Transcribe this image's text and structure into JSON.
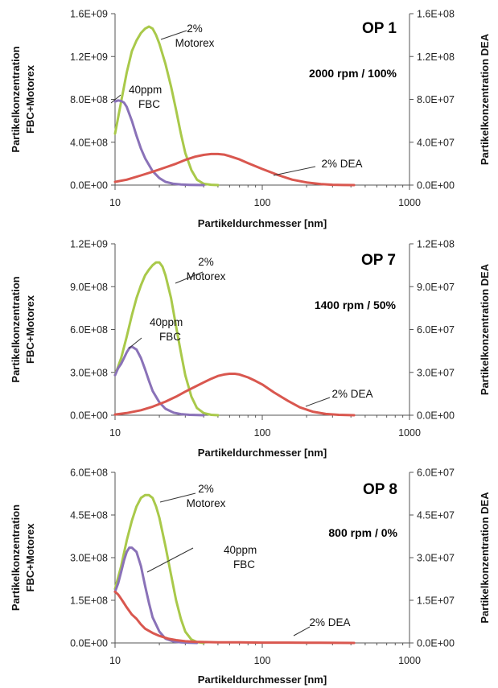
{
  "colors": {
    "motorex": "#a9c94a",
    "fbc": "#8a72b8",
    "dea": "#d9574f",
    "axis": "#555555"
  },
  "chart_data": [
    {
      "type": "line",
      "op_label": "OP 1",
      "condition": "2000 rpm / 100%",
      "xlabel": "Partikeldurchmesser [nm]",
      "ylabel_left": [
        "Partikelkonzentration",
        "FBC+Motorex"
      ],
      "ylabel_right": "Partikelkonzentration DEA",
      "x_scale": "log",
      "xlim": [
        10,
        1000
      ],
      "x_ticks": [
        "10",
        "100",
        "1000"
      ],
      "ylim_left": [
        0,
        1600000000
      ],
      "ylim_right": [
        0,
        160000000
      ],
      "y_ticks_left": [
        "0.0E+00",
        "4.0E+08",
        "8.0E+08",
        "1.2E+09",
        "1.6E+09"
      ],
      "y_ticks_right": [
        "0.0E+00",
        "4.0E+07",
        "8.0E+07",
        "1.2E+08",
        "1.6E+08"
      ],
      "annotations": {
        "motorex": [
          "2%",
          "Motorex"
        ],
        "fbc": [
          "40ppm",
          "FBC"
        ],
        "dea": [
          "2% DEA"
        ]
      },
      "series": [
        {
          "name": "2% Motorex",
          "axis": "left",
          "color": "#a9c94a",
          "x": [
            10,
            11,
            12,
            13,
            14,
            15,
            16,
            17,
            18,
            19,
            20,
            22,
            24,
            26,
            28,
            30,
            33,
            36,
            40,
            45,
            50
          ],
          "y": [
            480000000,
            780000000,
            1050000000,
            1250000000,
            1350000000,
            1420000000,
            1460000000,
            1480000000,
            1460000000,
            1400000000,
            1320000000,
            1130000000,
            920000000,
            700000000,
            480000000,
            300000000,
            140000000,
            50000000,
            12000000,
            3000000,
            0
          ]
        },
        {
          "name": "40ppm FBC",
          "axis": "left",
          "color": "#8a72b8",
          "x": [
            10,
            10.5,
            11,
            11.5,
            12,
            13,
            14,
            15,
            16,
            18,
            20,
            22,
            25,
            28,
            32,
            36,
            40
          ],
          "y": [
            780000000,
            790000000,
            785000000,
            770000000,
            730000000,
            600000000,
            460000000,
            340000000,
            250000000,
            130000000,
            65000000,
            30000000,
            12000000,
            5000000,
            2000000,
            1000000,
            0
          ]
        },
        {
          "name": "2% DEA",
          "axis": "right",
          "color": "#d9574f",
          "x": [
            10,
            12,
            15,
            18,
            22,
            26,
            30,
            35,
            40,
            45,
            50,
            55,
            60,
            70,
            80,
            100,
            130,
            160,
            200,
            250,
            300,
            350,
            420
          ],
          "y": [
            3000000,
            5000000,
            9000000,
            12500000,
            16500000,
            20000000,
            23500000,
            26500000,
            28200000,
            29000000,
            29000000,
            28500000,
            27000000,
            24000000,
            20500000,
            15000000,
            9000000,
            5000000,
            2500000,
            900000,
            300000,
            100000,
            0
          ]
        }
      ]
    },
    {
      "type": "line",
      "op_label": "OP 7",
      "condition": "1400 rpm / 50%",
      "xlabel": "Partikeldurchmesser [nm]",
      "ylabel_left": [
        "Partikelkonzentration",
        "FBC+Motorex"
      ],
      "ylabel_right": "Partikelkonzentration DEA",
      "x_scale": "log",
      "xlim": [
        10,
        1000
      ],
      "x_ticks": [
        "10",
        "100",
        "1000"
      ],
      "ylim_left": [
        0,
        1200000000
      ],
      "ylim_right": [
        0,
        120000000
      ],
      "y_ticks_left": [
        "0.0E+00",
        "3.0E+08",
        "6.0E+08",
        "9.0E+08",
        "1.2E+09"
      ],
      "y_ticks_right": [
        "0.0E+00",
        "3.0E+07",
        "6.0E+07",
        "9.0E+07",
        "1.2E+08"
      ],
      "annotations": {
        "motorex": [
          "2%",
          "Motorex"
        ],
        "fbc": [
          "40ppm",
          "FBC"
        ],
        "dea": [
          "2% DEA"
        ]
      },
      "series": [
        {
          "name": "2% Motorex",
          "axis": "left",
          "color": "#a9c94a",
          "x": [
            10,
            11,
            12,
            13,
            14,
            15,
            16,
            17,
            18,
            19,
            20,
            21,
            22,
            24,
            26,
            28,
            30,
            33,
            36,
            40,
            45,
            50
          ],
          "y": [
            280000000,
            400000000,
            550000000,
            700000000,
            820000000,
            910000000,
            980000000,
            1020000000,
            1050000000,
            1070000000,
            1070000000,
            1040000000,
            980000000,
            820000000,
            620000000,
            440000000,
            280000000,
            130000000,
            50000000,
            15000000,
            3000000,
            0
          ]
        },
        {
          "name": "40ppm FBC",
          "axis": "left",
          "color": "#8a72b8",
          "x": [
            10,
            10.5,
            11,
            11.5,
            12,
            12.5,
            13,
            14,
            15,
            16,
            17,
            18,
            20,
            22,
            25,
            28,
            32,
            36,
            40
          ],
          "y": [
            280000000,
            330000000,
            360000000,
            400000000,
            440000000,
            470000000,
            480000000,
            460000000,
            400000000,
            320000000,
            240000000,
            170000000,
            90000000,
            45000000,
            18000000,
            8000000,
            3000000,
            1000000,
            0
          ]
        },
        {
          "name": "2% DEA",
          "axis": "right",
          "color": "#d9574f",
          "x": [
            10,
            12,
            15,
            18,
            22,
            26,
            30,
            35,
            40,
            45,
            50,
            55,
            60,
            65,
            70,
            80,
            90,
            100,
            120,
            150,
            180,
            220,
            270,
            330,
            420
          ],
          "y": [
            500000,
            1500000,
            3500000,
            6000000,
            9500000,
            13000000,
            16500000,
            20000000,
            23000000,
            25500000,
            27500000,
            28500000,
            29000000,
            29000000,
            28500000,
            26500000,
            24000000,
            21500000,
            16000000,
            10000000,
            5500000,
            2500000,
            900000,
            300000,
            0
          ]
        }
      ]
    },
    {
      "type": "line",
      "op_label": "OP 8",
      "condition": "800 rpm / 0%",
      "xlabel": "Partikeldurchmesser [nm]",
      "ylabel_left": [
        "Partikelkonzentration",
        "FBC+Motorex"
      ],
      "ylabel_right": "Partikelkonzentration DEA",
      "x_scale": "log",
      "xlim": [
        10,
        1000
      ],
      "x_ticks": [
        "10",
        "100",
        "1000"
      ],
      "ylim_left": [
        0,
        600000000
      ],
      "ylim_right": [
        0,
        60000000
      ],
      "y_ticks_left": [
        "0.0E+00",
        "1.5E+08",
        "3.0E+08",
        "4.5E+08",
        "6.0E+08"
      ],
      "y_ticks_right": [
        "0.0E+00",
        "1.5E+07",
        "3.0E+07",
        "4.5E+07",
        "6.0E+07"
      ],
      "annotations": {
        "motorex": [
          "2%",
          "Motorex"
        ],
        "fbc": [
          "40ppm",
          "FBC"
        ],
        "dea": [
          "2% DEA"
        ]
      },
      "series": [
        {
          "name": "2% Motorex",
          "axis": "left",
          "color": "#a9c94a",
          "x": [
            10,
            11,
            12,
            13,
            14,
            15,
            16,
            17,
            18,
            19,
            20,
            22,
            24,
            26,
            28,
            30,
            33,
            36,
            40
          ],
          "y": [
            190000000,
            270000000,
            360000000,
            430000000,
            480000000,
            510000000,
            520000000,
            520000000,
            510000000,
            480000000,
            440000000,
            340000000,
            240000000,
            150000000,
            85000000,
            40000000,
            12000000,
            3000000,
            0
          ]
        },
        {
          "name": "40ppm FBC",
          "axis": "left",
          "color": "#8a72b8",
          "x": [
            10,
            10.5,
            11,
            11.5,
            12,
            12.5,
            13,
            14,
            15,
            16,
            17,
            18,
            20,
            22,
            25,
            28,
            32,
            36
          ],
          "y": [
            180000000,
            210000000,
            250000000,
            290000000,
            320000000,
            335000000,
            335000000,
            320000000,
            270000000,
            200000000,
            140000000,
            90000000,
            40000000,
            15000000,
            5000000,
            2000000,
            500000,
            0
          ]
        },
        {
          "name": "2% DEA",
          "axis": "right",
          "color": "#d9574f",
          "x": [
            10,
            10.5,
            11,
            11.5,
            12,
            13,
            14,
            15,
            16,
            18,
            20,
            23,
            26,
            30,
            35,
            40,
            50,
            70,
            100,
            150,
            250,
            420
          ],
          "y": [
            18000000,
            17000000,
            15500000,
            14000000,
            12500000,
            10000000,
            8500000,
            6500000,
            5000000,
            3500000,
            2500000,
            1500000,
            1000000,
            600000,
            400000,
            300000,
            200000,
            200000,
            100000,
            100000,
            50000,
            0
          ]
        }
      ]
    }
  ]
}
